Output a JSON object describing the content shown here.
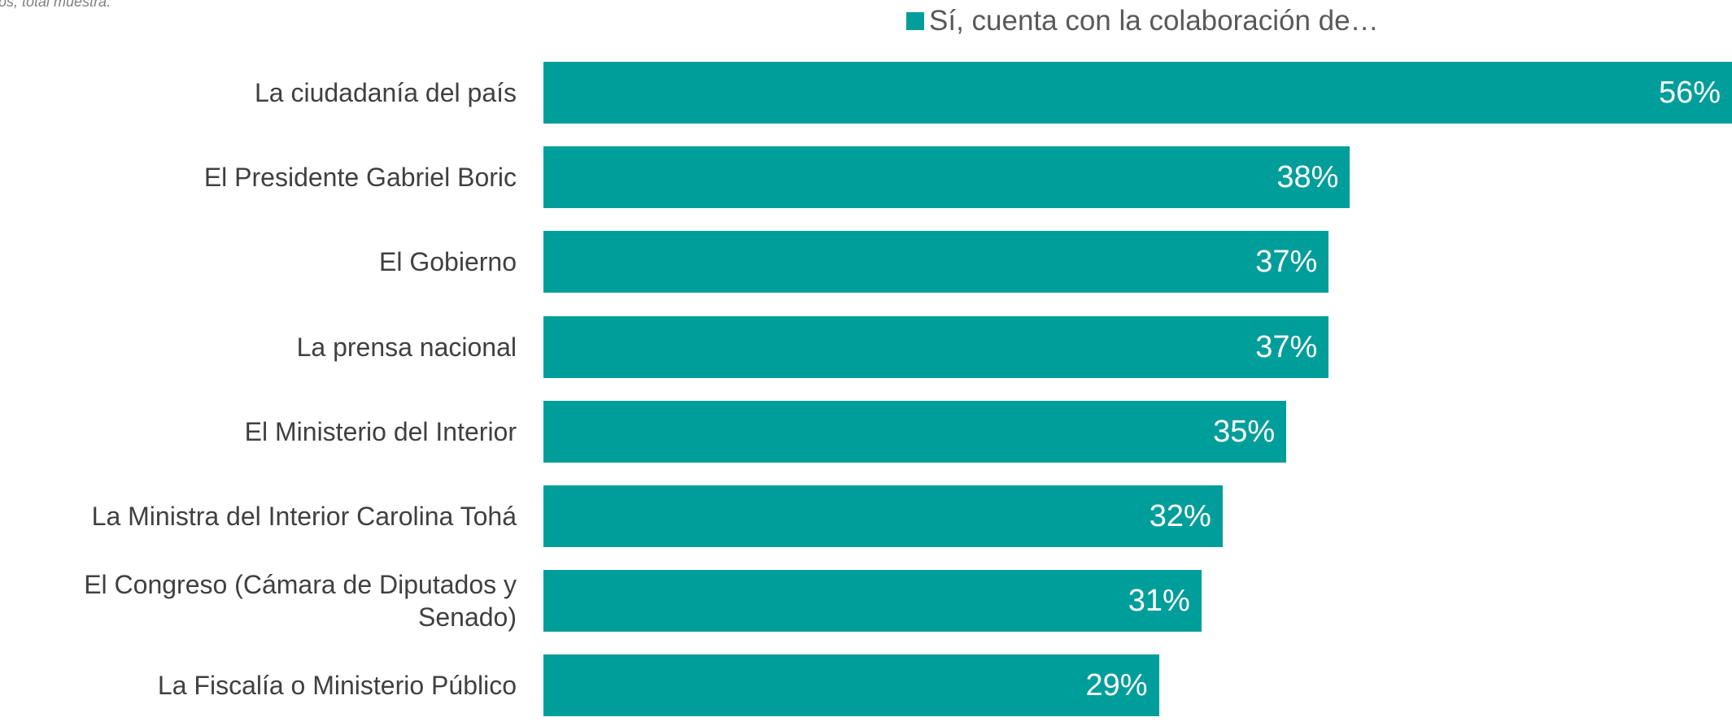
{
  "chart_data": {
    "type": "bar",
    "orientation": "horizontal",
    "note": "casos, total muestra.",
    "series": [
      {
        "name": "Sí, cuenta con la colaboración de…",
        "color": "#009e9b",
        "values": [
          56,
          38,
          37,
          37,
          35,
          32,
          31,
          29
        ],
        "value_labels": [
          "56%",
          "38%",
          "37%",
          "37%",
          "35%",
          "32%",
          "31%",
          "29%"
        ]
      }
    ],
    "categories": [
      "La ciudadanía del país",
      "El Presidente Gabriel Boric",
      "El Gobierno",
      "La prensa nacional",
      "El Ministerio del Interior",
      "La Ministra del Interior Carolina Tohá",
      "El Congreso (Cámara de Diputados y Senado)",
      "La Fiscalía o Ministerio Público"
    ],
    "legend": "top-right"
  }
}
